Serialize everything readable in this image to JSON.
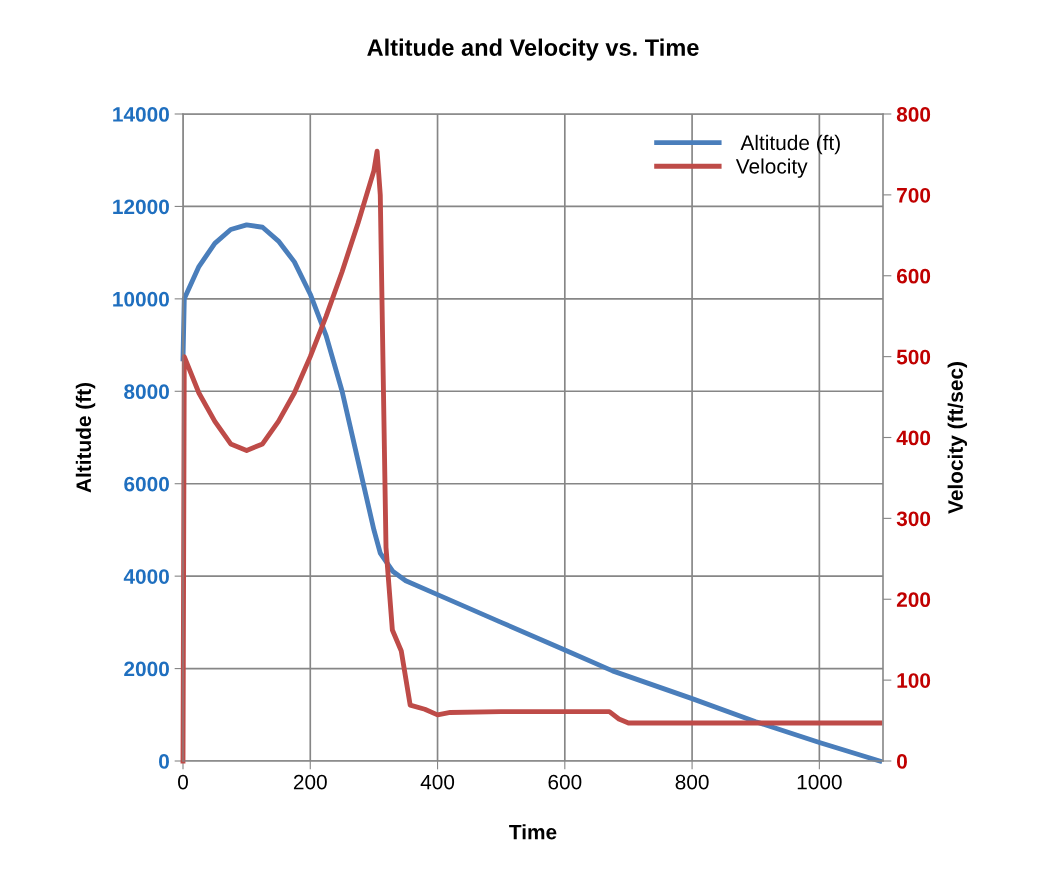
{
  "chart_data": {
    "type": "line",
    "title": "Altitude and Velocity vs. Time",
    "xlabel": "Time",
    "ylabel": "Altitude (ft)",
    "y2label": "Velocity (ft/sec)",
    "xlim": [
      0,
      1100
    ],
    "xticks": [
      0,
      200,
      400,
      600,
      800,
      1000
    ],
    "ylim": [
      0,
      14000
    ],
    "yticks": [
      0,
      2000,
      4000,
      6000,
      8000,
      10000,
      12000,
      14000
    ],
    "y2lim": [
      0,
      800
    ],
    "y2ticks": [
      0,
      100,
      200,
      300,
      400,
      500,
      600,
      700,
      800
    ],
    "grid": true,
    "legend": "top right",
    "marker": "none",
    "line_style": "solid",
    "series": [
      {
        "name": " Altitude (ft)",
        "color": "#4a7ebb",
        "axis": "y",
        "x": [
          0,
          2,
          25,
          50,
          75,
          100,
          125,
          150,
          175,
          200,
          225,
          250,
          275,
          300,
          310,
          330,
          350,
          400,
          500,
          600,
          675,
          800,
          900,
          1000,
          1095
        ],
        "values": [
          8700,
          10000,
          10700,
          11200,
          11500,
          11600,
          11550,
          11250,
          10800,
          10100,
          9200,
          8000,
          6500,
          5000,
          4500,
          4100,
          3900,
          3600,
          3000,
          2400,
          1950,
          1350,
          850,
          400,
          0
        ]
      },
      {
        "name": "Velocity",
        "color": "#be4b48",
        "axis": "y2",
        "x": [
          0,
          2,
          25,
          50,
          75,
          100,
          125,
          150,
          175,
          200,
          225,
          250,
          275,
          300,
          305,
          310,
          319,
          329,
          343,
          357,
          380,
          400,
          420,
          500,
          600,
          670,
          685,
          700,
          800,
          900,
          1000,
          1095
        ],
        "values": [
          0,
          500,
          455,
          420,
          392,
          384,
          392,
          420,
          455,
          500,
          550,
          605,
          665,
          730,
          754,
          700,
          264,
          162,
          136,
          69,
          64,
          57,
          60,
          61,
          61,
          61,
          52,
          47,
          47,
          47,
          47,
          47
        ]
      }
    ]
  }
}
